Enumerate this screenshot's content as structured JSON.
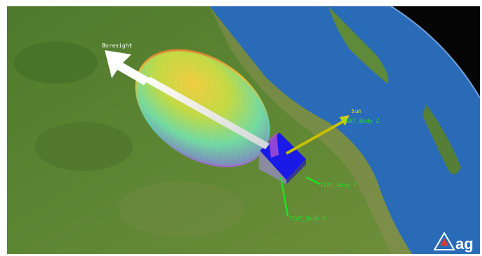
{
  "scene": {
    "labels": {
      "boresight": "Boresight",
      "sun": "Sun",
      "body_z": "TSAT_Body Z",
      "body_y": "TSAT_Body Y",
      "body_x": "TSAT_Body X"
    },
    "label_colors": {
      "boresight": "#ffffff",
      "sun": "#e8e01a",
      "axes": "#22e022"
    },
    "logo": {
      "text": "ag",
      "icon": "agi-logo-icon"
    }
  }
}
